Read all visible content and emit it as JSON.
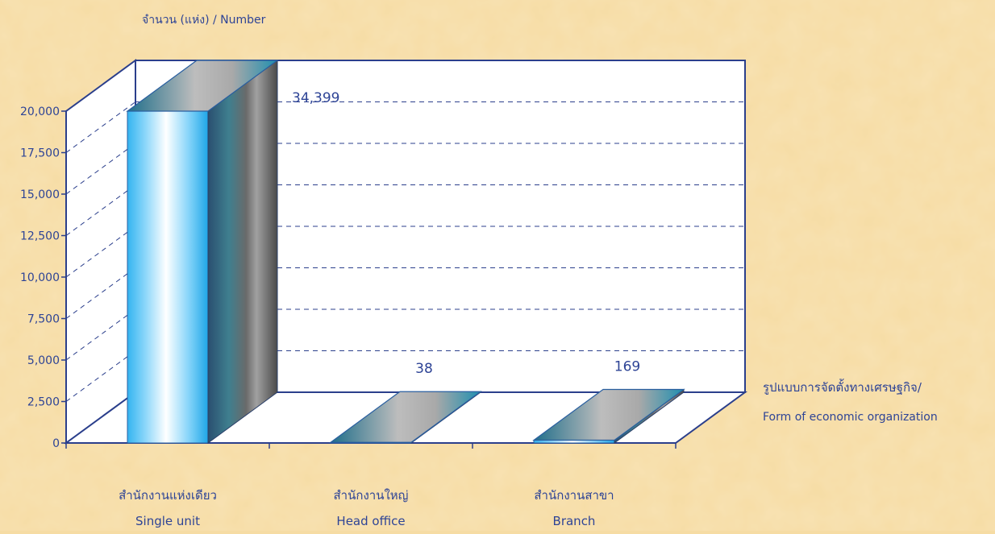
{
  "chart_data": {
    "type": "bar",
    "ylabel": "จำนวน (แห่ง)  /  Number",
    "xlabel_th": "รูปแบบการจัดตั้งทางเศรษฐกิจ/",
    "xlabel_en": "Form of  economic organization",
    "ylim": [
      0,
      20000
    ],
    "yticks": [
      "0",
      "2,500",
      "5,000",
      "7,500",
      "10,000",
      "12,500",
      "15,000",
      "17,500",
      "20,000"
    ],
    "categories": [
      {
        "th": "สำนักงานแห่งเดียว",
        "en": "Single unit"
      },
      {
        "th": "สำนักงานใหญ่",
        "en": "Head office"
      },
      {
        "th": "สำนักงานสาขา",
        "en": "Branch"
      }
    ],
    "values": [
      34399,
      38,
      169
    ],
    "value_labels": [
      "34,399",
      "38",
      "169"
    ],
    "grid": true,
    "colors": {
      "axis": "#2b3f8c",
      "text": "#2e4496",
      "background": "#f6dca4",
      "bar_light": "#3fb8ef",
      "bar_dark": "#1e4e7a",
      "bar_top": "#b8b8b8"
    }
  }
}
